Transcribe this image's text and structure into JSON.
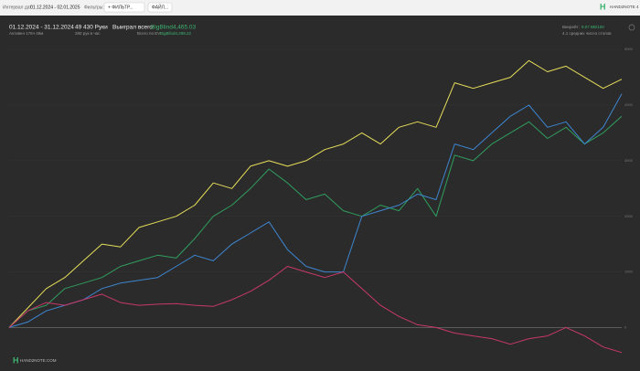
{
  "toolbar": {
    "date_label": "Интервал дат:",
    "date_range": "01.12.2024 - 02.01.2025",
    "filters_label": "Фильтры:",
    "buttons": [
      "+ ФИЛЬТР...",
      "ФАЙЛ..."
    ],
    "brand": "HAND2NOTE 4"
  },
  "stats": {
    "period": "01.12.2024 - 31.12.2024",
    "active": "Активен 176ч 49м",
    "hands": "49 430 Руки",
    "rate": "280 рук в час",
    "won_label": "Выиграл всего:",
    "won_value": "BigBlind4,465.03",
    "ev_label": "Всего по EV:",
    "ev_value": "BigBlind4,298.22",
    "winrate_label": "Винрейт:",
    "winrate_value": "9.07 BB/100",
    "tables": "4.1 средних число столов"
  },
  "footer": {
    "brand": "HAND2NOTE.COM"
  },
  "chart_data": {
    "type": "line",
    "grid": true,
    "ylim": [
      -650,
      5150
    ],
    "yticks": [
      0,
      1000,
      2000,
      3000,
      4000,
      5000
    ],
    "series": [
      {
        "color": "#e6de5a",
        "values": [
          0,
          350,
          700,
          900,
          1200,
          1500,
          1450,
          1800,
          1900,
          2000,
          2200,
          2600,
          2500,
          2900,
          3000,
          2900,
          3000,
          3200,
          3300,
          3500,
          3300,
          3600,
          3700,
          3600,
          4400,
          4300,
          4400,
          4500,
          4800,
          4600,
          4700,
          4500,
          4300,
          4465
        ]
      },
      {
        "color": "#2f9e5e",
        "values": [
          0,
          300,
          400,
          700,
          800,
          900,
          1100,
          1200,
          1300,
          1250,
          1600,
          2000,
          2200,
          2500,
          2850,
          2600,
          2300,
          2400,
          2100,
          2000,
          2200,
          2100,
          2500,
          2000,
          3100,
          3000,
          3300,
          3500,
          3700,
          3400,
          3600,
          3300,
          3500,
          3800
        ]
      },
      {
        "color": "#3d86d0",
        "values": [
          0,
          100,
          300,
          400,
          500,
          700,
          800,
          850,
          900,
          1100,
          1300,
          1200,
          1500,
          1700,
          1900,
          1400,
          1100,
          1000,
          1000,
          2000,
          2100,
          2200,
          2400,
          2300,
          3300,
          3200,
          3500,
          3800,
          4000,
          3600,
          3700,
          3300,
          3600,
          4200
        ]
      },
      {
        "color": "#c8386a",
        "values": [
          0,
          300,
          450,
          400,
          500,
          600,
          450,
          400,
          420,
          430,
          400,
          380,
          500,
          650,
          850,
          1100,
          1000,
          900,
          1000,
          700,
          400,
          200,
          50,
          0,
          -100,
          -150,
          -200,
          -300,
          -200,
          -150,
          0,
          -150,
          -350,
          -450
        ]
      }
    ]
  }
}
